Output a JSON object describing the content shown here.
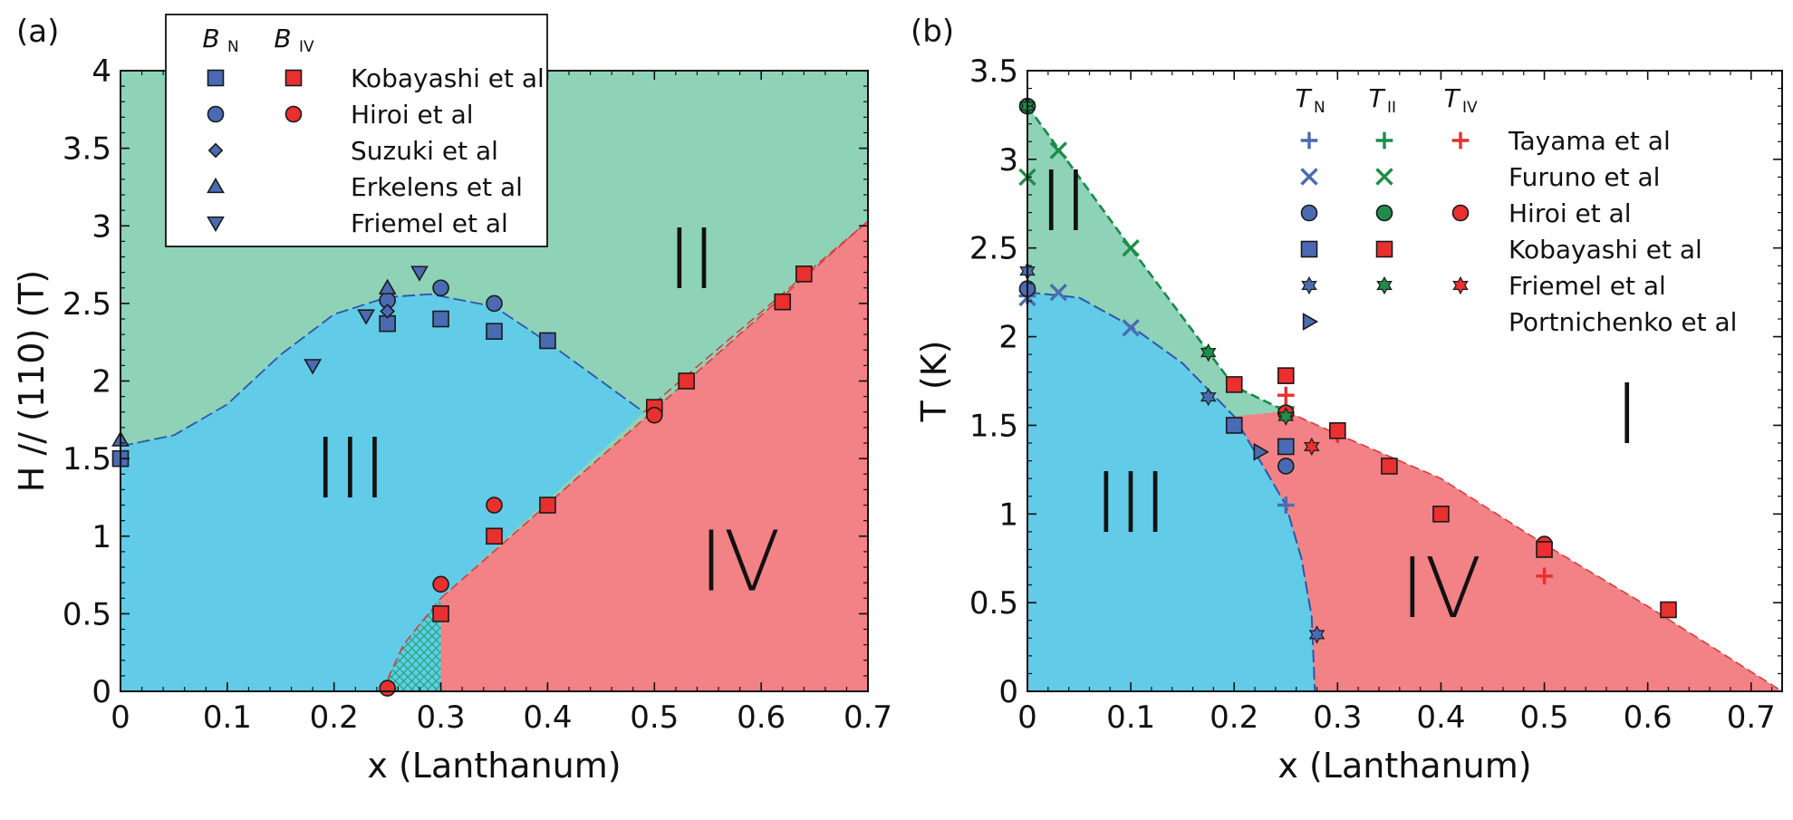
{
  "figure": {
    "colors": {
      "phase_II": "#8ed3b7",
      "phase_III": "#61cbe8",
      "phase_IV": "#f28285",
      "blue_marker": "#4a6bb3",
      "red_marker": "#ea2f2f",
      "green_marker": "#1f8c4a",
      "blue_line": "#2f56a8",
      "green_line": "#178a46",
      "red_line": "#d93c3c",
      "hatch": "#1fa877"
    }
  },
  "chart_data": [
    {
      "panel": "(a)",
      "type": "scatter",
      "title": "",
      "xlabel": "x (Lanthanum)",
      "ylabel": "H // (110) (T)",
      "xlim": [
        0,
        0.7
      ],
      "ylim": [
        0,
        4
      ],
      "xticks": [
        0,
        0.1,
        0.2,
        0.3,
        0.4,
        0.5,
        0.6,
        0.7
      ],
      "xtick_labels": [
        "0",
        "0.1",
        "0.2",
        "0.3",
        "0.4",
        "0.5",
        "0.6",
        "0.7"
      ],
      "yticks": [
        0,
        0.5,
        1,
        1.5,
        2,
        2.5,
        3,
        3.5,
        4
      ],
      "ytick_labels": [
        "0",
        "0.5",
        "1",
        "1.5",
        "2",
        "2.5",
        "3",
        "3.5",
        "4"
      ],
      "phase_labels": [
        {
          "text": "II",
          "x": 0.535,
          "y": 2.6
        },
        {
          "text": "III",
          "x": 0.215,
          "y": 1.25
        },
        {
          "text": "IV",
          "x": 0.58,
          "y": 0.65
        }
      ],
      "legend": {
        "position": "top-left",
        "col_headers": [
          "B",
          "B"
        ],
        "col_subscripts": [
          "N",
          "IV"
        ],
        "entries": [
          "Kobayashi et al",
          "Hiroi et al",
          "Suzuki et al",
          "Erkelens et al",
          "Friemel et al"
        ]
      },
      "boundaries": {
        "III_II": [
          [
            0,
            1.58
          ],
          [
            0.05,
            1.65
          ],
          [
            0.1,
            1.85
          ],
          [
            0.15,
            2.17
          ],
          [
            0.2,
            2.43
          ],
          [
            0.25,
            2.54
          ],
          [
            0.29,
            2.56
          ],
          [
            0.35,
            2.48
          ],
          [
            0.4,
            2.25
          ],
          [
            0.45,
            2.0
          ],
          [
            0.49,
            1.8
          ]
        ],
        "II_IV": [
          [
            0.49,
            1.8
          ],
          [
            0.7,
            3.03
          ]
        ],
        "III_IV": [
          [
            0.3,
            0.6
          ],
          [
            0.7,
            3.03
          ]
        ],
        "low_x_boundary": [
          [
            0.245,
            0.0
          ],
          [
            0.265,
            0.3
          ],
          [
            0.3,
            0.6
          ]
        ]
      },
      "series": [
        {
          "name": "Kobayashi et al B_N",
          "marker": "square",
          "color": "blue",
          "points": [
            [
              0,
              1.5
            ],
            [
              0.25,
              2.37
            ],
            [
              0.3,
              2.4
            ],
            [
              0.35,
              2.32
            ],
            [
              0.4,
              2.26
            ]
          ]
        },
        {
          "name": "Kobayashi et al B_IV",
          "marker": "square",
          "color": "red",
          "points": [
            [
              0.3,
              0.5
            ],
            [
              0.35,
              1.0
            ],
            [
              0.4,
              1.2
            ],
            [
              0.5,
              1.83
            ],
            [
              0.53,
              2.0
            ],
            [
              0.62,
              2.51
            ],
            [
              0.64,
              2.69
            ]
          ]
        },
        {
          "name": "Hiroi et al B_N",
          "marker": "circle",
          "color": "blue",
          "points": [
            [
              0.25,
              2.52
            ],
            [
              0.3,
              2.6
            ],
            [
              0.35,
              2.5
            ]
          ]
        },
        {
          "name": "Hiroi et al B_IV",
          "marker": "circle",
          "color": "red",
          "points": [
            [
              0.25,
              0.02
            ],
            [
              0.3,
              0.69
            ],
            [
              0.35,
              1.2
            ],
            [
              0.5,
              1.78
            ]
          ]
        },
        {
          "name": "Suzuki et al B_N",
          "marker": "diamond",
          "color": "blue",
          "points": [
            [
              0.25,
              2.45
            ]
          ]
        },
        {
          "name": "Erkelens et al B_N",
          "marker": "triangle-up",
          "color": "blue",
          "points": [
            [
              0,
              1.62
            ],
            [
              0.25,
              2.6
            ]
          ]
        },
        {
          "name": "Friemel et al B_N",
          "marker": "triangle-down",
          "color": "blue",
          "points": [
            [
              0.18,
              2.1
            ],
            [
              0.23,
              2.42
            ],
            [
              0.28,
              2.7
            ]
          ]
        }
      ]
    },
    {
      "panel": "(b)",
      "type": "scatter",
      "title": "",
      "xlabel": "x (Lanthanum)",
      "ylabel": "T (K)",
      "xlim": [
        0,
        0.73
      ],
      "ylim": [
        0,
        3.5
      ],
      "xticks": [
        0,
        0.1,
        0.2,
        0.3,
        0.4,
        0.5,
        0.6,
        0.7
      ],
      "xtick_labels": [
        "0",
        "0.1",
        "0.2",
        "0.3",
        "0.4",
        "0.5",
        "0.6",
        "0.7"
      ],
      "yticks": [
        0,
        0.5,
        1,
        1.5,
        2,
        2.5,
        3,
        3.5
      ],
      "ytick_labels": [
        "0",
        "0.5",
        "1",
        "1.5",
        "2",
        "2.5",
        "3",
        "3.5"
      ],
      "phase_labels": [
        {
          "text": "II",
          "x": 0.035,
          "y": 2.6
        },
        {
          "text": "III",
          "x": 0.1,
          "y": 0.9
        },
        {
          "text": "IV",
          "x": 0.4,
          "y": 0.42
        },
        {
          "text": "I",
          "x": 0.58,
          "y": 1.4
        }
      ],
      "legend": {
        "position": "top-right",
        "col_headers": [
          "T",
          "T",
          "T"
        ],
        "col_subscripts": [
          "N",
          "II",
          "IV"
        ],
        "entries": [
          "Tayama et al",
          "Furuno et al",
          "Hiroi et al",
          "Kobayashi et al",
          "Friemel et al",
          "Portnichenko et al"
        ]
      },
      "boundaries": {
        "III_II": [
          [
            0,
            2.25
          ],
          [
            0.05,
            2.22
          ],
          [
            0.1,
            2.06
          ],
          [
            0.15,
            1.85
          ],
          [
            0.2,
            1.55
          ],
          [
            0.25,
            1.05
          ],
          [
            0.265,
            0.75
          ],
          [
            0.275,
            0.42
          ],
          [
            0.278,
            0.0
          ]
        ],
        "II_line": [
          [
            0,
            3.3
          ],
          [
            0.1,
            2.5
          ],
          [
            0.2,
            1.72
          ],
          [
            0.25,
            1.58
          ]
        ],
        "I_IV": [
          [
            0.25,
            1.58
          ],
          [
            0.3,
            1.45
          ],
          [
            0.4,
            1.2
          ],
          [
            0.5,
            0.83
          ],
          [
            0.6,
            0.48
          ],
          [
            0.73,
            0.0
          ]
        ]
      },
      "series": [
        {
          "name": "Tayama et al T_N",
          "marker": "plus",
          "color": "blue",
          "points": [
            [
              0,
              2.23
            ],
            [
              0.25,
              1.05
            ]
          ]
        },
        {
          "name": "Tayama et al T_II",
          "marker": "plus",
          "color": "green",
          "points": [
            [
              0.25,
              1.6
            ]
          ]
        },
        {
          "name": "Tayama et al T_IV",
          "marker": "plus",
          "color": "red",
          "points": [
            [
              0.25,
              1.67
            ],
            [
              0.3,
              1.45
            ],
            [
              0.5,
              0.65
            ]
          ]
        },
        {
          "name": "Furuno et al T_N",
          "marker": "x",
          "color": "blue",
          "points": [
            [
              0,
              2.22
            ],
            [
              0.03,
              2.25
            ],
            [
              0.1,
              2.05
            ]
          ]
        },
        {
          "name": "Furuno et al T_II",
          "marker": "x",
          "color": "green",
          "points": [
            [
              0,
              2.9
            ],
            [
              0.03,
              3.05
            ],
            [
              0.1,
              2.5
            ]
          ]
        },
        {
          "name": "Hiroi et al T_N",
          "marker": "circle",
          "color": "blue",
          "points": [
            [
              0,
              2.27
            ],
            [
              0.25,
              1.27
            ]
          ]
        },
        {
          "name": "Hiroi et al T_II",
          "marker": "circle",
          "color": "green",
          "points": [
            [
              0,
              3.3
            ]
          ]
        },
        {
          "name": "Hiroi et al T_IV",
          "marker": "circle",
          "color": "red",
          "points": [
            [
              0.25,
              1.57
            ],
            [
              0.5,
              0.83
            ]
          ]
        },
        {
          "name": "Kobayashi et al T_N",
          "marker": "square",
          "color": "blue",
          "points": [
            [
              0.2,
              1.5
            ],
            [
              0.25,
              1.38
            ]
          ]
        },
        {
          "name": "Kobayashi et al T_IV",
          "marker": "square",
          "color": "red",
          "points": [
            [
              0.2,
              1.73
            ],
            [
              0.25,
              1.78
            ],
            [
              0.3,
              1.47
            ],
            [
              0.35,
              1.27
            ],
            [
              0.4,
              1.0
            ],
            [
              0.5,
              0.8
            ],
            [
              0.62,
              0.46
            ]
          ]
        },
        {
          "name": "Friemel et al T_N",
          "marker": "star",
          "color": "blue",
          "points": [
            [
              0,
              2.37
            ],
            [
              0.175,
              1.66
            ],
            [
              0.28,
              0.32
            ]
          ]
        },
        {
          "name": "Friemel et al T_II",
          "marker": "star",
          "color": "green",
          "points": [
            [
              0,
              3.3
            ],
            [
              0.175,
              1.91
            ],
            [
              0.25,
              1.55
            ]
          ]
        },
        {
          "name": "Friemel et al T_IV",
          "marker": "star",
          "color": "red",
          "points": [
            [
              0.275,
              1.38
            ]
          ]
        },
        {
          "name": "Portnichenko et al T_N",
          "marker": "triangle-right",
          "color": "blue",
          "points": [
            [
              0.225,
              1.35
            ]
          ]
        }
      ]
    }
  ]
}
